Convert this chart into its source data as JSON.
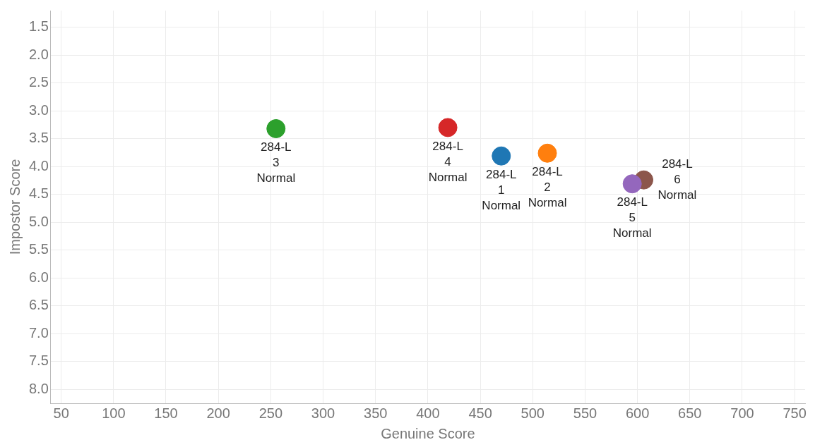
{
  "chart_data": {
    "type": "scatter",
    "xlabel": "Genuine Score",
    "ylabel": "Impostor Score",
    "xlim": [
      40,
      760
    ],
    "xticks": [
      50,
      100,
      150,
      200,
      250,
      300,
      350,
      400,
      450,
      500,
      550,
      600,
      650,
      700,
      750
    ],
    "ylim": [
      8.25,
      1.2
    ],
    "yticks": [
      1.5,
      {
        "value": 2,
        "label": "2.0"
      },
      2.5,
      {
        "value": 3,
        "label": "3.0"
      },
      3.5,
      {
        "value": 4,
        "label": "4.0"
      },
      4.5,
      {
        "value": 5,
        "label": "5.0"
      },
      5.5,
      {
        "value": 6,
        "label": "6.0"
      },
      6.5,
      {
        "value": 7,
        "label": "7.0"
      },
      7.5,
      {
        "value": 8,
        "label": "8.0"
      }
    ],
    "grid": true,
    "legend": false,
    "marker": "circle",
    "series": [
      {
        "color": "#1f77b4",
        "x": [
          470
        ],
        "values": [
          3.81
        ]
      },
      {
        "color": "#ff7f0e",
        "x": [
          514
        ],
        "values": [
          3.76
        ]
      },
      {
        "color": "#2ca02c",
        "x": [
          255
        ],
        "values": [
          3.32
        ]
      },
      {
        "color": "#d62728",
        "x": [
          419
        ],
        "values": [
          3.3
        ]
      },
      {
        "color": "#9467bd",
        "x": [
          595
        ],
        "values": [
          4.31
        ]
      },
      {
        "color": "#8c564b",
        "x": [
          606
        ],
        "values": [
          4.24
        ]
      }
    ],
    "annotations": [
      {
        "text": "284-L 1 Normal",
        "x": 470,
        "y": 3.81
      },
      {
        "text": "284-L 2 Normal",
        "x": 514,
        "y": 3.76
      },
      {
        "text": "284-L 3 Normal",
        "x": 255,
        "y": 3.32
      },
      {
        "text": "284-L 4 Normal",
        "x": 419,
        "y": 3.3
      },
      {
        "text": "284-L 5 Normal",
        "x": 595,
        "y": 4.31
      },
      {
        "text": "284-L 6 Normal",
        "x": 606,
        "y": 4.24
      }
    ]
  }
}
